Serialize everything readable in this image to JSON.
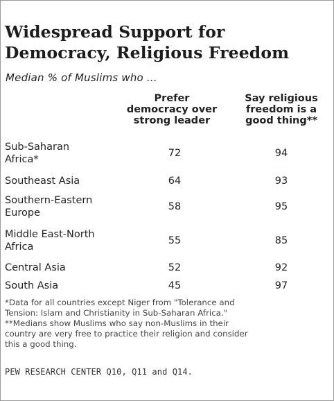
{
  "chart_data": {
    "type": "table",
    "title": "Widespread Support for\nDemocracy, Religious Freedom",
    "subtitle": "Median % of Muslims who ...",
    "columns": [
      "Prefer\ndemocracy over\nstrong leader",
      "Say religious\nfreedom is a\ngood thing**"
    ],
    "rows": [
      {
        "label": "Sub-Saharan\nAfrica*",
        "values": [
          72,
          94
        ]
      },
      {
        "label": "Southeast Asia",
        "values": [
          64,
          93
        ]
      },
      {
        "label": "Southern-Eastern\nEurope",
        "values": [
          58,
          95
        ]
      },
      {
        "label": "Middle East-North\nAfrica",
        "values": [
          55,
          85
        ]
      },
      {
        "label": "Central Asia",
        "values": [
          52,
          92
        ]
      },
      {
        "label": "South Asia",
        "values": [
          45,
          97
        ]
      }
    ]
  },
  "notes": [
    "*Data for all countries except Niger from \"Tolerance and\nTension: Islam and Christianity in Sub-Saharan Africa.\"",
    "**Medians show Muslims who say non-Muslims in their\ncountry are very free to practice their religion and consider\nthis a good thing."
  ],
  "source": "PEW RESEARCH CENTER Q10, Q11 and Q14."
}
